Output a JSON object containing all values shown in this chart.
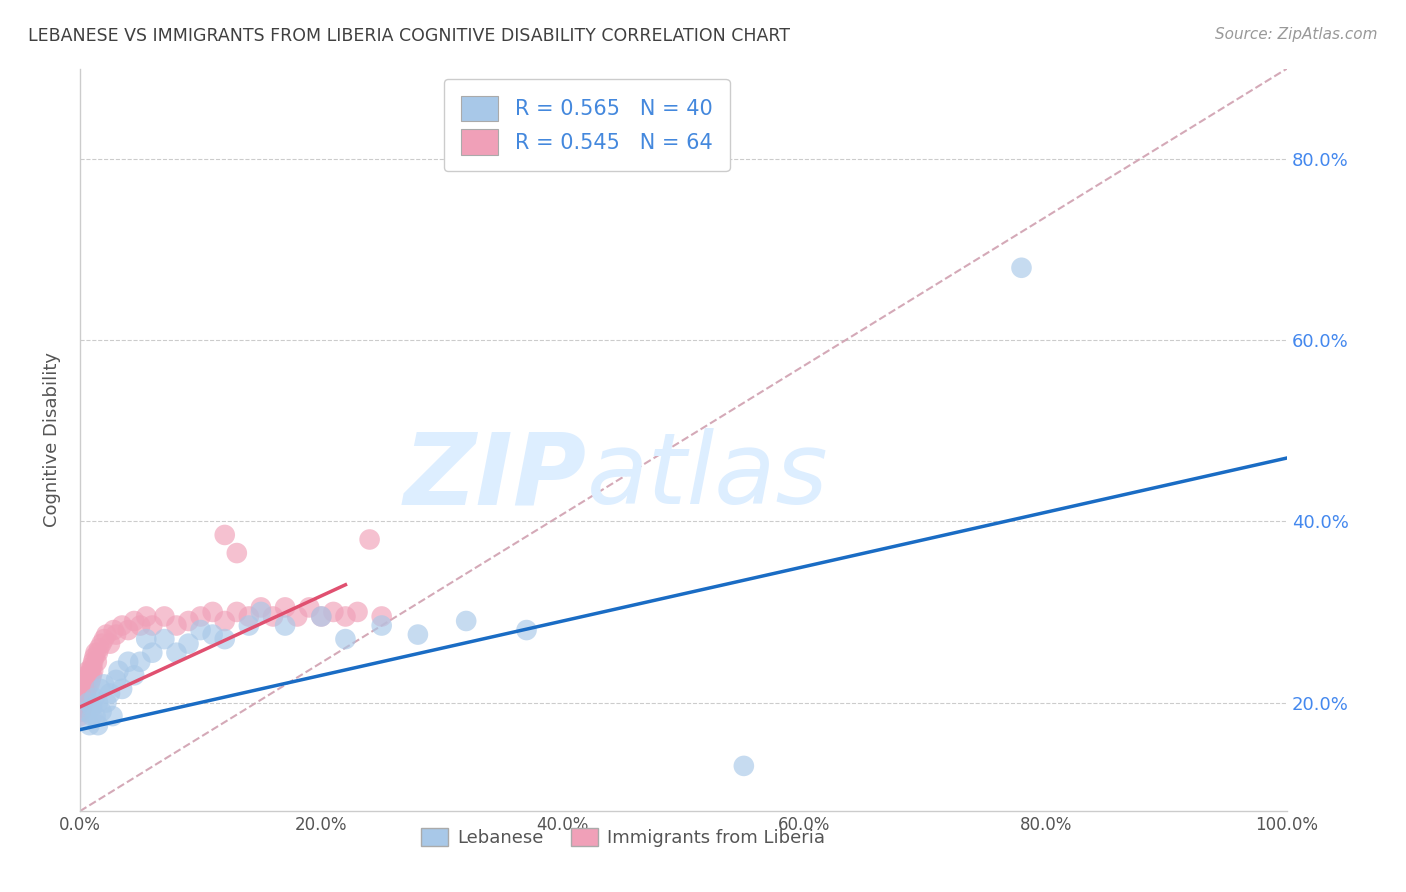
{
  "title": "LEBANESE VS IMMIGRANTS FROM LIBERIA COGNITIVE DISABILITY CORRELATION CHART",
  "source": "Source: ZipAtlas.com",
  "ylabel": "Cognitive Disability",
  "legend_label1": "Lebanese",
  "legend_label2": "Immigrants from Liberia",
  "R1": 0.565,
  "N1": 40,
  "R2": 0.545,
  "N2": 64,
  "blue_color": "#a8c8e8",
  "pink_color": "#f0a0b8",
  "blue_line_color": "#1a6cc4",
  "pink_line_color": "#e05070",
  "diag_color": "#d0a0b0",
  "bg_color": "#ffffff",
  "grid_color": "#cccccc",
  "title_color": "#404040",
  "ytick_color": "#4488ee",
  "xlim": [
    0,
    1.0
  ],
  "ylim": [
    0.08,
    0.9
  ],
  "xticks": [
    0.0,
    0.2,
    0.4,
    0.6,
    0.8,
    1.0
  ],
  "yticks": [
    0.2,
    0.4,
    0.6,
    0.8
  ],
  "blue_x": [
    0.005,
    0.007,
    0.008,
    0.01,
    0.01,
    0.012,
    0.013,
    0.015,
    0.015,
    0.017,
    0.018,
    0.02,
    0.022,
    0.025,
    0.027,
    0.03,
    0.032,
    0.035,
    0.04,
    0.045,
    0.05,
    0.055,
    0.06,
    0.07,
    0.08,
    0.09,
    0.1,
    0.11,
    0.12,
    0.14,
    0.15,
    0.17,
    0.2,
    0.22,
    0.25,
    0.28,
    0.32,
    0.37,
    0.55,
    0.78
  ],
  "blue_y": [
    0.19,
    0.2,
    0.175,
    0.185,
    0.195,
    0.205,
    0.185,
    0.2,
    0.175,
    0.215,
    0.19,
    0.22,
    0.2,
    0.21,
    0.185,
    0.225,
    0.235,
    0.215,
    0.245,
    0.23,
    0.245,
    0.27,
    0.255,
    0.27,
    0.255,
    0.265,
    0.28,
    0.275,
    0.27,
    0.285,
    0.3,
    0.285,
    0.295,
    0.27,
    0.285,
    0.275,
    0.29,
    0.28,
    0.13,
    0.68
  ],
  "pink_x": [
    0.0,
    0.0,
    0.001,
    0.001,
    0.002,
    0.002,
    0.003,
    0.003,
    0.003,
    0.004,
    0.004,
    0.005,
    0.005,
    0.005,
    0.006,
    0.006,
    0.007,
    0.007,
    0.008,
    0.008,
    0.009,
    0.009,
    0.01,
    0.01,
    0.011,
    0.011,
    0.012,
    0.013,
    0.014,
    0.015,
    0.016,
    0.018,
    0.02,
    0.022,
    0.025,
    0.028,
    0.03,
    0.035,
    0.04,
    0.045,
    0.05,
    0.055,
    0.06,
    0.07,
    0.08,
    0.09,
    0.1,
    0.11,
    0.12,
    0.13,
    0.14,
    0.15,
    0.16,
    0.17,
    0.18,
    0.19,
    0.2,
    0.21,
    0.22,
    0.23,
    0.24,
    0.25,
    0.13,
    0.12
  ],
  "pink_y": [
    0.195,
    0.185,
    0.2,
    0.19,
    0.205,
    0.195,
    0.21,
    0.2,
    0.215,
    0.205,
    0.215,
    0.225,
    0.21,
    0.22,
    0.23,
    0.215,
    0.225,
    0.235,
    0.22,
    0.23,
    0.235,
    0.225,
    0.24,
    0.23,
    0.245,
    0.235,
    0.25,
    0.255,
    0.245,
    0.255,
    0.26,
    0.265,
    0.27,
    0.275,
    0.265,
    0.28,
    0.275,
    0.285,
    0.28,
    0.29,
    0.285,
    0.295,
    0.285,
    0.295,
    0.285,
    0.29,
    0.295,
    0.3,
    0.29,
    0.3,
    0.295,
    0.305,
    0.295,
    0.305,
    0.295,
    0.305,
    0.295,
    0.3,
    0.295,
    0.3,
    0.38,
    0.295,
    0.365,
    0.385
  ],
  "watermark_zip": "ZIP",
  "watermark_atlas": "atlas",
  "watermark_color": "#ddeeff"
}
